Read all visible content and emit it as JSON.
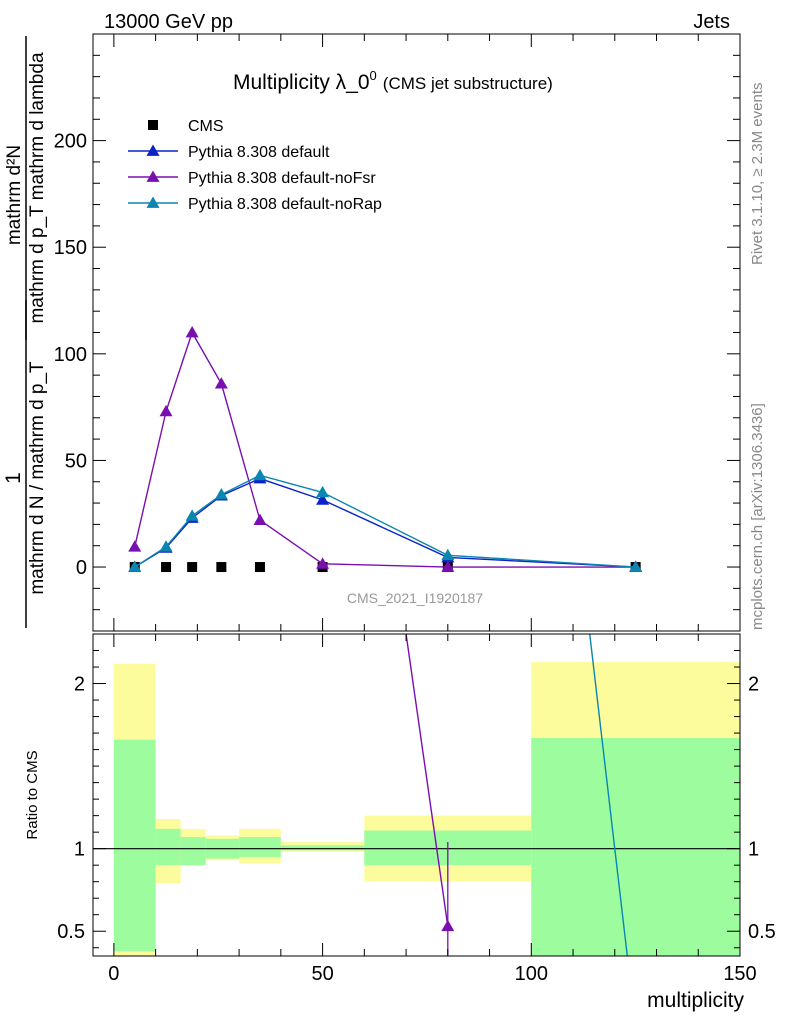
{
  "header": {
    "left": "13000 GeV pp",
    "right": "Jets"
  },
  "side": {
    "rivet": "Rivet 3.1.10, ≥ 2.3M events",
    "mcplots": "mcplots.cern.ch [arXiv:1306.3436]"
  },
  "colors": {
    "cms": "#000000",
    "default": "#0b22c8",
    "noFsr": "#7a0fb0",
    "noRap": "#0a86b0",
    "band_inner": "#9dfc9d",
    "band_outer": "#fcfc9d"
  },
  "chart_data": [
    {
      "type": "line",
      "title": "Multiplicity λ_0⁰",
      "title_main": "Multiplicity λ_0",
      "title_sup": "0",
      "subtitle": "(CMS jet substructure)",
      "watermark": "CMS_2021_I1920187",
      "ylabel": {
        "lhs_num": "1",
        "lhs_den": "mathrm d N / mathrm d p_T",
        "rhs_num": "mathrm d²N",
        "rhs_den": "mathrm d p_T mathrm d lambda"
      },
      "xlim": [
        -5,
        150
      ],
      "ylim": [
        -30,
        250
      ],
      "y_ticks": [
        0,
        50,
        100,
        150,
        200
      ],
      "legend_position": "top-left",
      "series": [
        {
          "name": "CMS",
          "marker": "square",
          "x": [
            5,
            12.5,
            18.75,
            25.75,
            35,
            50,
            80,
            125
          ],
          "y": [
            0,
            0,
            0,
            0,
            0,
            0,
            0,
            0
          ]
        },
        {
          "name": "Pythia 8.308 default",
          "marker": "triangle",
          "x": [
            5,
            12.5,
            18.75,
            25.75,
            35,
            50,
            80,
            125
          ],
          "y": [
            0,
            9,
            23,
            33.5,
            41.5,
            31.5,
            4.5,
            0
          ]
        },
        {
          "name": "Pythia 8.308 default-noFsr",
          "marker": "triangle",
          "x": [
            5,
            12.5,
            18.75,
            25.75,
            35,
            50,
            80,
            125
          ],
          "y": [
            9.5,
            73,
            110,
            86,
            22,
            1.5,
            0,
            0
          ]
        },
        {
          "name": "Pythia 8.308 default-noRap",
          "marker": "triangle",
          "x": [
            5,
            12.5,
            18.75,
            25.75,
            35,
            50,
            80,
            125
          ],
          "y": [
            0,
            9.5,
            24,
            34,
            43,
            35,
            5.5,
            0
          ]
        }
      ]
    },
    {
      "type": "line",
      "ylabel": "Ratio to CMS",
      "xlabel": "multiplicity",
      "xlim": [
        -5,
        150
      ],
      "ylim": [
        0.35,
        2.3
      ],
      "y_ticks": [
        0.5,
        1,
        2
      ],
      "x_ticks": [
        0,
        50,
        100,
        150
      ],
      "bands": [
        {
          "x": [
            0,
            10
          ],
          "inner": [
            0.38,
            1.66
          ],
          "outer": [
            0.34,
            2.12
          ]
        },
        {
          "x": [
            10,
            16
          ],
          "inner": [
            0.9,
            1.12
          ],
          "outer": [
            0.79,
            1.18
          ]
        },
        {
          "x": [
            16,
            22
          ],
          "inner": [
            0.9,
            1.07
          ],
          "outer": [
            0.9,
            1.12
          ]
        },
        {
          "x": [
            22,
            30
          ],
          "inner": [
            0.94,
            1.06
          ],
          "outer": [
            0.93,
            1.08
          ]
        },
        {
          "x": [
            30,
            40
          ],
          "inner": [
            0.95,
            1.07
          ],
          "outer": [
            0.91,
            1.12
          ]
        },
        {
          "x": [
            40,
            60
          ],
          "inner": [
            0.99,
            1.02
          ],
          "outer": [
            0.98,
            1.04
          ]
        },
        {
          "x": [
            60,
            100
          ],
          "inner": [
            0.9,
            1.11
          ],
          "outer": [
            0.8,
            1.2
          ]
        },
        {
          "x": [
            100,
            150
          ],
          "inner": [
            0.35,
            1.67
          ],
          "outer": [
            0.35,
            2.13
          ]
        }
      ],
      "series": [
        {
          "name": "Pythia 8.308 default-noFsr",
          "x": [
            70,
            80
          ],
          "y": [
            2.3,
            0.53
          ],
          "marker_at": [
            80,
            0.53
          ],
          "err": [
            0.35,
            1.04
          ]
        },
        {
          "name": "Pythia 8.308 default-noRap",
          "x": [
            114,
            123
          ],
          "y": [
            2.3,
            0.35
          ]
        }
      ]
    }
  ]
}
